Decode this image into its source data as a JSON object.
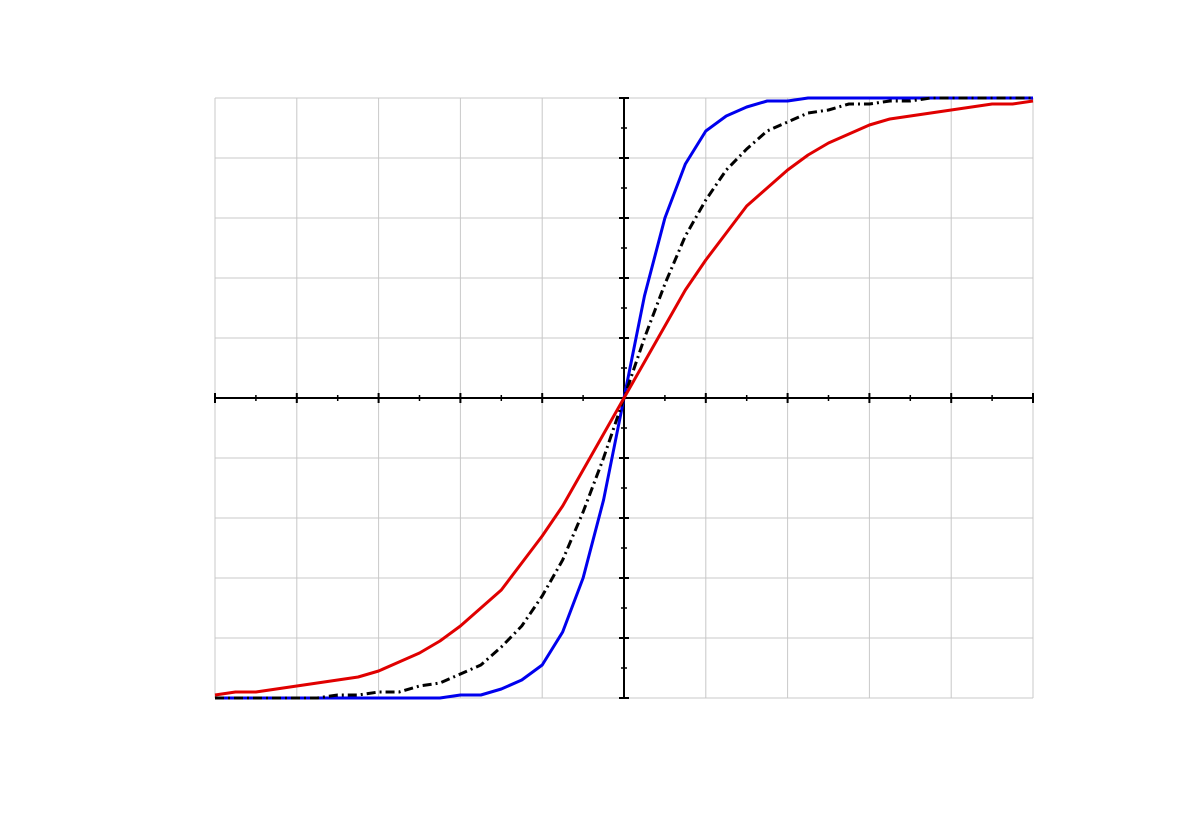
{
  "chart_data": {
    "type": "line",
    "x": [
      -5,
      -4.75,
      -4.5,
      -4.25,
      -4,
      -3.75,
      -3.5,
      -3.25,
      -3,
      -2.75,
      -2.5,
      -2.25,
      -2,
      -1.75,
      -1.5,
      -1.25,
      -1,
      -0.75,
      -0.5,
      -0.25,
      0,
      0.25,
      0.5,
      0.75,
      1,
      1.25,
      1.5,
      1.75,
      2,
      2.25,
      2.5,
      2.75,
      3,
      3.25,
      3.5,
      3.75,
      4,
      4.25,
      4.5,
      4.75,
      5
    ],
    "series": [
      {
        "color": "#0000ee",
        "line_style": "solid",
        "values": [
          -1,
          -1,
          -1,
          -1,
          -1,
          -1,
          -1,
          -1,
          -1,
          -1,
          -1,
          -1,
          -0.99,
          -0.99,
          -0.97,
          -0.94,
          -0.89,
          -0.78,
          -0.6,
          -0.34,
          0,
          0.34,
          0.6,
          0.78,
          0.89,
          0.94,
          0.97,
          0.99,
          0.99,
          1,
          1,
          1,
          1,
          1,
          1,
          1,
          1,
          1,
          1,
          1,
          1
        ]
      },
      {
        "color": "#000000",
        "line_style": "dashdot",
        "values": [
          -1,
          -1,
          -1,
          -1,
          -1,
          -1,
          -0.99,
          -0.99,
          -0.98,
          -0.98,
          -0.96,
          -0.95,
          -0.92,
          -0.89,
          -0.83,
          -0.76,
          -0.66,
          -0.54,
          -0.38,
          -0.2,
          0,
          0.2,
          0.38,
          0.54,
          0.66,
          0.76,
          0.83,
          0.89,
          0.92,
          0.95,
          0.96,
          0.98,
          0.98,
          0.99,
          0.99,
          1,
          1,
          1,
          1,
          1,
          1
        ]
      },
      {
        "color": "#e00000",
        "line_style": "solid",
        "values": [
          -0.99,
          -0.98,
          -0.98,
          -0.97,
          -0.96,
          -0.95,
          -0.94,
          -0.93,
          -0.91,
          -0.88,
          -0.85,
          -0.81,
          -0.76,
          -0.7,
          -0.64,
          -0.55,
          -0.46,
          -0.36,
          -0.24,
          -0.12,
          0,
          0.12,
          0.24,
          0.36,
          0.46,
          0.55,
          0.64,
          0.7,
          0.76,
          0.81,
          0.85,
          0.88,
          0.91,
          0.93,
          0.94,
          0.95,
          0.96,
          0.97,
          0.98,
          0.98,
          0.99
        ]
      }
    ],
    "xlim": [
      -5,
      5
    ],
    "xticks": [
      -5,
      -4,
      -3,
      -2,
      -1,
      0,
      1,
      2,
      3,
      4,
      5
    ],
    "ylim": [
      -1,
      1
    ],
    "yticks": [
      -1,
      -0.8,
      -0.6,
      -0.4,
      -0.2,
      0,
      0.2,
      0.4,
      0.6,
      0.8,
      1
    ],
    "grid": true
  }
}
